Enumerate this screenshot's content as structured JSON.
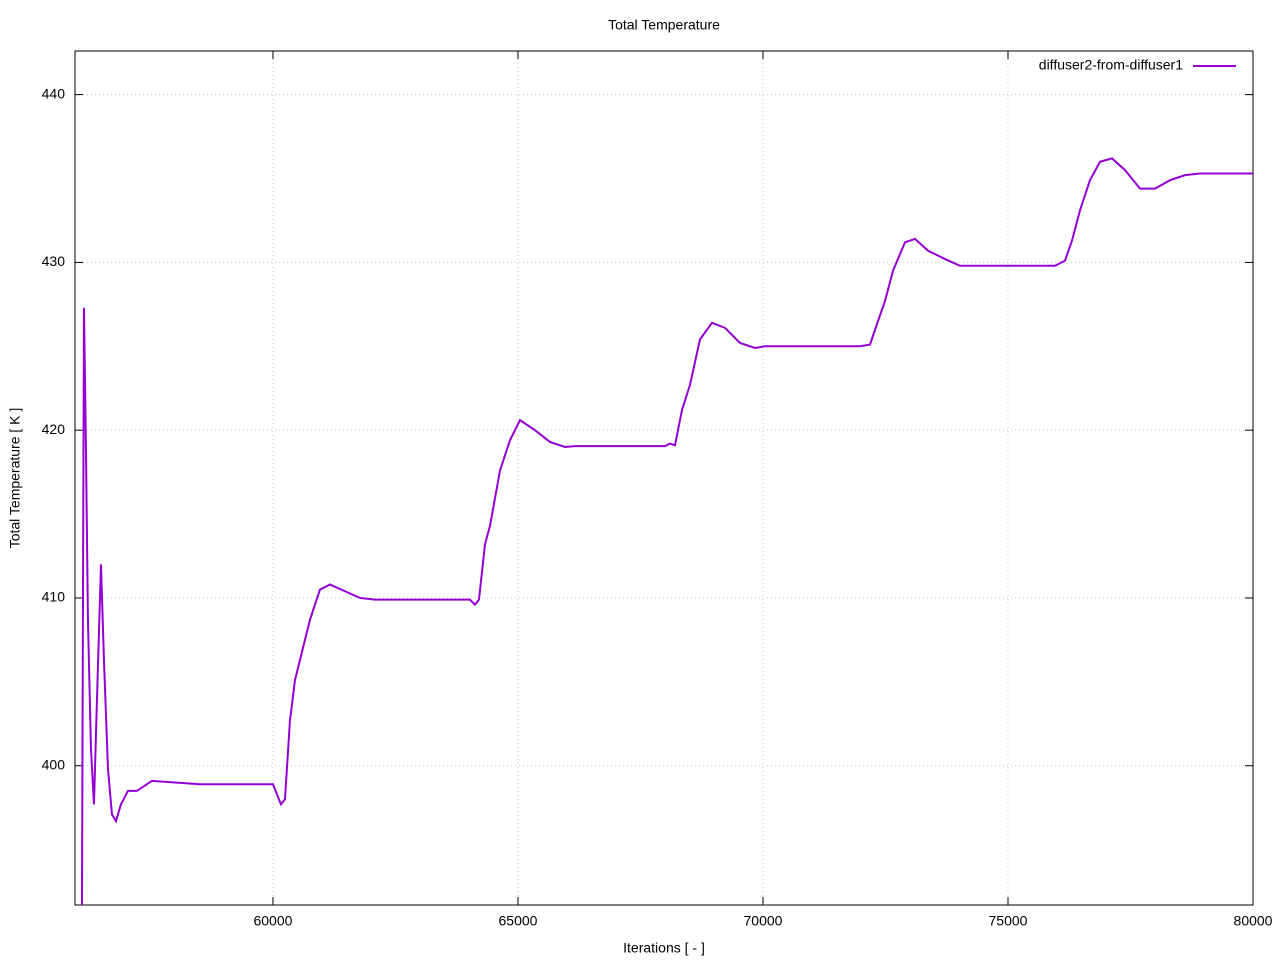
{
  "chart_data": {
    "type": "line",
    "title": "Total Temperature",
    "xlabel": "Iterations [ - ]",
    "ylabel": "Total Temperature [ K ]",
    "xlim": [
      55960,
      80000
    ],
    "ylim": [
      391.7,
      442.6
    ],
    "xticks": [
      60000,
      65000,
      70000,
      75000,
      80000
    ],
    "yticks": [
      400,
      410,
      420,
      430,
      440
    ],
    "grid": true,
    "legend": "top-right",
    "x": [
      56102,
      56143,
      56184,
      56224,
      56286,
      56347,
      56408,
      56490,
      56551,
      56633,
      56714,
      56796,
      56898,
      57041,
      57224,
      57530,
      58000,
      58510,
      60000,
      60163,
      60245,
      60347,
      60449,
      60551,
      60755,
      60959,
      61163,
      61469,
      61775,
      62082,
      64020,
      64122,
      64204,
      64327,
      64429,
      64633,
      64837,
      65041,
      65347,
      65653,
      65959,
      66163,
      68000,
      68102,
      68204,
      68347,
      68510,
      68714,
      68959,
      69224,
      69531,
      69837,
      70041,
      71980,
      72184,
      72347,
      72490,
      72653,
      72898,
      73102,
      73367,
      73714,
      74020,
      75959,
      76163,
      76306,
      76469,
      76673,
      76878,
      77122,
      77388,
      77694,
      78000,
      78306,
      78612,
      78918,
      80000
    ],
    "series": [
      {
        "name": "diffuser2-from-diffuser1",
        "color": "#9400d3",
        "values": [
          391.7,
          427.3,
          418.8,
          408.7,
          401.0,
          397.7,
          403.9,
          412.0,
          406.3,
          399.8,
          397.1,
          396.7,
          397.7,
          398.5,
          398.5,
          399.1,
          399.0,
          398.9,
          398.9,
          397.7,
          398.0,
          402.7,
          405.1,
          406.3,
          408.7,
          410.5,
          410.8,
          410.4,
          410.0,
          409.9,
          409.9,
          409.6,
          409.9,
          413.2,
          414.3,
          417.6,
          419.4,
          420.6,
          420.0,
          419.3,
          419.0,
          419.05,
          419.05,
          419.2,
          419.1,
          421.2,
          422.7,
          425.4,
          426.4,
          426.1,
          425.2,
          424.9,
          425.0,
          425.0,
          425.1,
          426.5,
          427.7,
          429.5,
          431.2,
          431.4,
          430.7,
          430.2,
          429.8,
          429.8,
          430.1,
          431.3,
          433.1,
          434.9,
          436.0,
          436.2,
          435.5,
          434.4,
          434.4,
          434.9,
          435.2,
          435.3,
          435.3
        ]
      }
    ]
  }
}
